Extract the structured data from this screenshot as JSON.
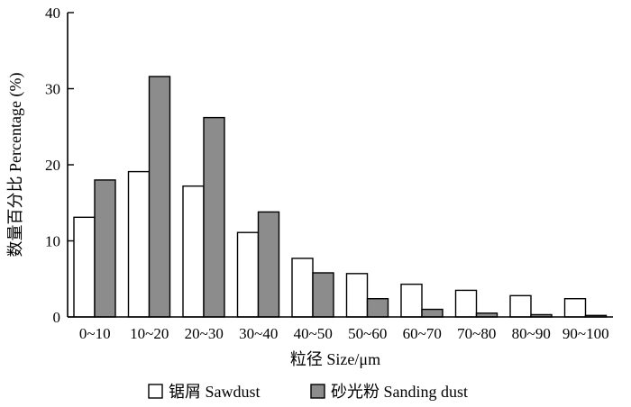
{
  "chart_data": {
    "type": "bar",
    "categories": [
      "0~10",
      "10~20",
      "20~30",
      "30~40",
      "40~50",
      "50~60",
      "60~70",
      "70~80",
      "80~90",
      "90~100"
    ],
    "series": [
      {
        "name": "锯屑  Sawdust",
        "color": "#ffffff",
        "values": [
          13.1,
          19.1,
          17.2,
          11.1,
          7.7,
          5.7,
          4.3,
          3.5,
          2.8,
          2.4
        ]
      },
      {
        "name": "砂光粉  Sanding dust",
        "color": "#8c8c8c",
        "values": [
          18.0,
          31.6,
          26.2,
          13.8,
          5.8,
          2.4,
          1.0,
          0.5,
          0.3,
          0.2
        ]
      }
    ],
    "ylim": [
      0,
      40
    ],
    "yticks": [
      0,
      10,
      20,
      30,
      40
    ],
    "xlabel": "粒径  Size/μm",
    "ylabel": "数量百分比  Percentage (%)",
    "grid": false,
    "legend": "bottom"
  }
}
